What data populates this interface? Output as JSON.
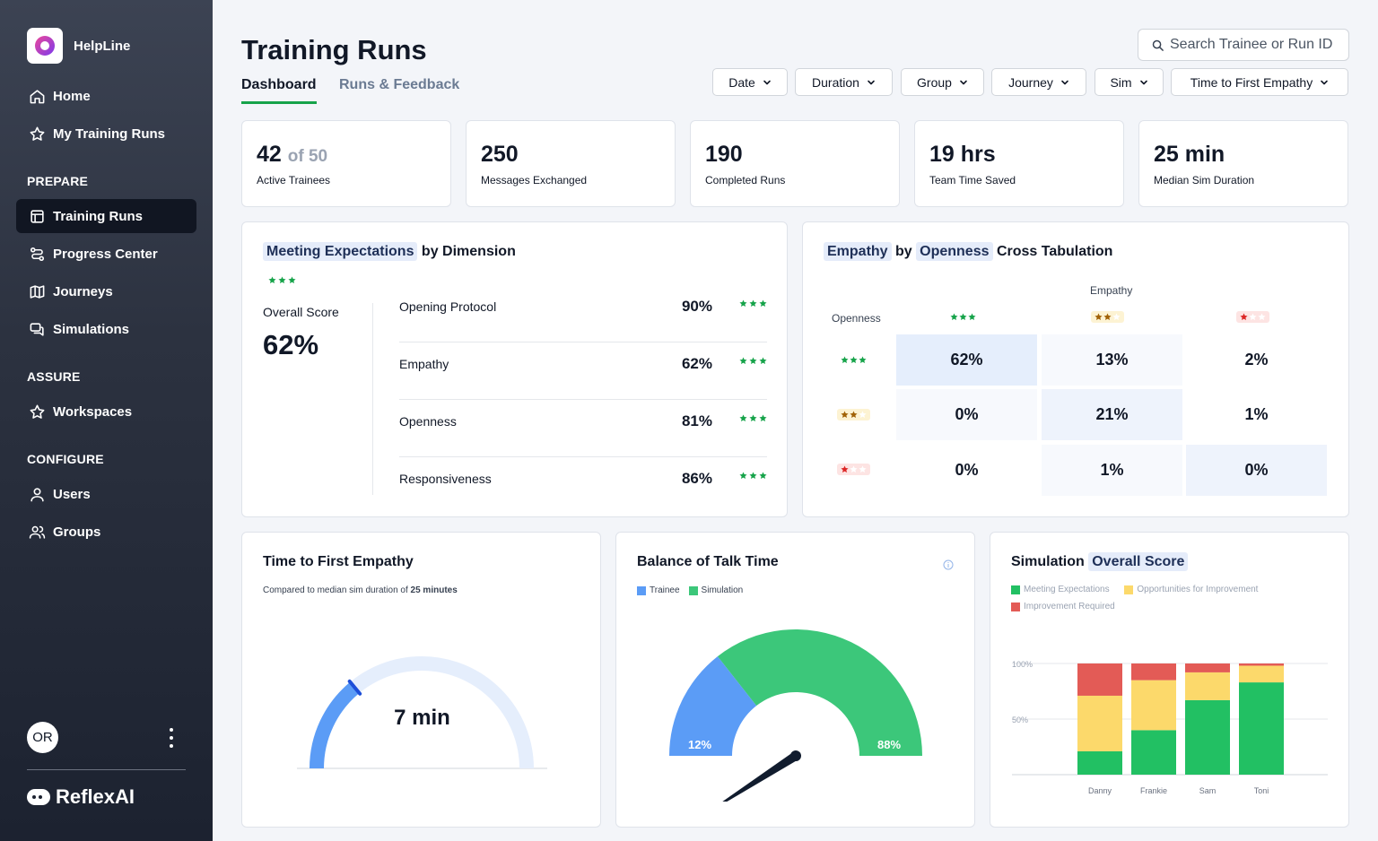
{
  "sidebar": {
    "brand": "HelpLine",
    "nav": [
      {
        "label": "Home",
        "icon": "home-icon"
      },
      {
        "label": "My Training Runs",
        "icon": "star-icon"
      }
    ],
    "sections": {
      "prepare": "PREPARE",
      "assure": "ASSURE",
      "configure": "CONFIGURE"
    },
    "prepare_items": [
      {
        "label": "Training Runs",
        "icon": "table-icon",
        "active": true
      },
      {
        "label": "Progress Center",
        "icon": "route-icon"
      },
      {
        "label": "Journeys",
        "icon": "map-icon"
      },
      {
        "label": "Simulations",
        "icon": "chat-icon"
      }
    ],
    "assure_items": [
      {
        "label": "Workspaces",
        "icon": "star-icon"
      }
    ],
    "configure_items": [
      {
        "label": "Users",
        "icon": "user-icon"
      },
      {
        "label": "Groups",
        "icon": "users-icon"
      }
    ],
    "user_initials": "OR",
    "footer_brand": "ReflexAI"
  },
  "header": {
    "title": "Training Runs",
    "tabs": [
      "Dashboard",
      "Runs & Feedback"
    ],
    "search_placeholder": "Search Trainee or Run ID",
    "filters": [
      "Date",
      "Duration",
      "Group",
      "Journey",
      "Sim",
      "Time to First Empathy"
    ]
  },
  "stats": [
    {
      "value": "42",
      "suffix": "of 50",
      "label": "Active Trainees"
    },
    {
      "value": "250",
      "suffix": "",
      "label": "Messages Exchanged"
    },
    {
      "value": "190",
      "suffix": "",
      "label": "Completed Runs"
    },
    {
      "value": "19 hrs",
      "suffix": "",
      "label": "Team Time Saved"
    },
    {
      "value": "25 min",
      "suffix": "",
      "label": "Median Sim Duration"
    }
  ],
  "meeting": {
    "title_hl": "Meeting Expectations",
    "title_rest": " by Dimension",
    "overall_label": "Overall Score",
    "overall_value": "62%",
    "rows": [
      {
        "name": "Opening Protocol",
        "value": "90%"
      },
      {
        "name": "Empathy",
        "value": "62%"
      },
      {
        "name": "Openness",
        "value": "81%"
      },
      {
        "name": "Responsiveness",
        "value": "86%"
      }
    ]
  },
  "crosstab": {
    "title_a": "Empathy",
    "title_by": " by ",
    "title_b": "Openness",
    "title_rest": " Cross Tabulation",
    "col_axis": "Empathy",
    "row_axis": "Openness",
    "cells": [
      [
        "62%",
        "13%",
        "2%"
      ],
      [
        "0%",
        "21%",
        "1%"
      ],
      [
        "0%",
        "1%",
        "0%"
      ]
    ],
    "colors": {
      "green": "#16a34a",
      "amber": "#a16207",
      "red": "#dc2626"
    }
  },
  "tfe": {
    "title": "Time to First Empathy",
    "subtitle_prefix": "Compared to median sim duration of ",
    "subtitle_bold": "25 minutes",
    "value_label": "7 min",
    "fraction": 0.28
  },
  "talk": {
    "title": "Balance of Talk Time",
    "legend": [
      "Trainee",
      "Simulation"
    ],
    "trainee_label": "12%",
    "sim_label": "88%",
    "trainee_share": 0.12,
    "colors": {
      "trainee": "#5b9cf6",
      "simulation": "#3cc77a"
    }
  },
  "chart_data": {
    "type": "bar",
    "stacked": true,
    "title": "Simulation Overall Score",
    "categories": [
      "Danny",
      "Frankie",
      "Sam",
      "Toni"
    ],
    "series": [
      {
        "name": "Meeting Expectations",
        "values": [
          21,
          40,
          67,
          83
        ],
        "color": "#22c063"
      },
      {
        "name": "Opportunities for Improvement",
        "values": [
          50,
          45,
          25,
          15
        ],
        "color": "#fcd96b"
      },
      {
        "name": "Improvement Required",
        "values": [
          29,
          15,
          8,
          2
        ],
        "color": "#e35b56"
      }
    ],
    "ylim": [
      0,
      100
    ],
    "yticks": [
      "100%",
      "50%"
    ],
    "xlabel": "",
    "ylabel": "",
    "legend_position": "top-left",
    "grid": true
  },
  "score_title": {
    "prefix": "Simulation ",
    "hl": "Overall Score"
  }
}
